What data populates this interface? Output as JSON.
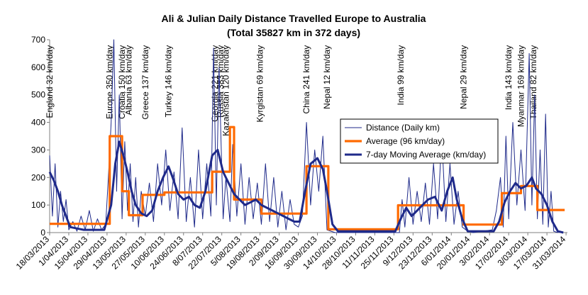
{
  "chart_data": {
    "type": "line",
    "title": "Ali & Julian Daily Distance Travelled Europe to Australia",
    "subtitle": "(Total 35827 km  in 372 days)",
    "xlabel": "",
    "ylabel": "",
    "ylim": [
      0,
      700
    ],
    "yticks": [
      0,
      100,
      200,
      300,
      400,
      500,
      600,
      700
    ],
    "x_range": [
      "2013-03-18",
      "2014-04-01"
    ],
    "x_tick_dates": [
      "2013-03-18",
      "2013-04-01",
      "2013-04-15",
      "2013-04-29",
      "2013-05-13",
      "2013-05-27",
      "2013-06-10",
      "2013-06-24",
      "2013-07-08",
      "2013-07-22",
      "2013-08-05",
      "2013-08-19",
      "2013-09-02",
      "2013-09-16",
      "2013-09-30",
      "2013-10-14",
      "2013-10-28",
      "2013-11-11",
      "2013-11-25",
      "2013-12-09",
      "2013-12-23",
      "2014-01-06",
      "2014-01-20",
      "2014-02-03",
      "2014-02-17",
      "2014-03-03",
      "2014-03-17",
      "2014-03-31"
    ],
    "x_tick_labels": [
      "18/03/2013",
      "1/04/2013",
      "15/04/2013",
      "29/04/2013",
      "13/05/2013",
      "27/05/2013",
      "10/06/2013",
      "24/06/2013",
      "8/07/2013",
      "22/07/2013",
      "5/08/2013",
      "19/08/2013",
      "2/09/2013",
      "16/09/2013",
      "30/09/2013",
      "14/10/2013",
      "28/10/2013",
      "11/11/2013",
      "25/11/2013",
      "9/12/2013",
      "23/12/2013",
      "6/01/2014",
      "20/01/2014",
      "3/02/2014",
      "17/02/2014",
      "3/03/2014",
      "17/03/2014",
      "31/03/2014"
    ],
    "grid": false,
    "legend_position": "right",
    "series": [
      {
        "name": "Distance (Daily km)",
        "color": "#1f2a8a",
        "style": "thin",
        "points": [
          [
            "2013-03-18",
            280
          ],
          [
            "2013-03-20",
            60
          ],
          [
            "2013-03-22",
            250
          ],
          [
            "2013-03-24",
            20
          ],
          [
            "2013-03-26",
            150
          ],
          [
            "2013-03-28",
            40
          ],
          [
            "2013-03-30",
            120
          ],
          [
            "2013-04-01",
            10
          ],
          [
            "2013-04-04",
            40
          ],
          [
            "2013-04-07",
            5
          ],
          [
            "2013-04-10",
            60
          ],
          [
            "2013-04-13",
            10
          ],
          [
            "2013-04-16",
            80
          ],
          [
            "2013-04-19",
            5
          ],
          [
            "2013-04-22",
            50
          ],
          [
            "2013-04-25",
            10
          ],
          [
            "2013-04-28",
            30
          ],
          [
            "2013-04-30",
            200
          ],
          [
            "2013-05-02",
            400
          ],
          [
            "2013-05-04",
            700
          ],
          [
            "2013-05-06",
            150
          ],
          [
            "2013-05-08",
            500
          ],
          [
            "2013-05-10",
            50
          ],
          [
            "2013-05-12",
            330
          ],
          [
            "2013-05-14",
            80
          ],
          [
            "2013-05-16",
            250
          ],
          [
            "2013-05-18",
            40
          ],
          [
            "2013-05-20",
            200
          ],
          [
            "2013-05-22",
            20
          ],
          [
            "2013-05-24",
            150
          ],
          [
            "2013-05-27",
            60
          ],
          [
            "2013-05-30",
            180
          ],
          [
            "2013-06-02",
            40
          ],
          [
            "2013-06-05",
            250
          ],
          [
            "2013-06-08",
            100
          ],
          [
            "2013-06-11",
            300
          ],
          [
            "2013-06-14",
            80
          ],
          [
            "2013-06-17",
            220
          ],
          [
            "2013-06-20",
            50
          ],
          [
            "2013-06-23",
            380
          ],
          [
            "2013-06-26",
            40
          ],
          [
            "2013-06-29",
            200
          ],
          [
            "2013-07-02",
            20
          ],
          [
            "2013-07-05",
            300
          ],
          [
            "2013-07-08",
            50
          ],
          [
            "2013-07-11",
            250
          ],
          [
            "2013-07-14",
            60
          ],
          [
            "2013-07-16",
            670
          ],
          [
            "2013-07-18",
            100
          ],
          [
            "2013-07-20",
            600
          ],
          [
            "2013-07-23",
            50
          ],
          [
            "2013-07-25",
            200
          ],
          [
            "2013-07-28",
            40
          ],
          [
            "2013-07-30",
            320
          ],
          [
            "2013-08-02",
            60
          ],
          [
            "2013-08-05",
            250
          ],
          [
            "2013-08-08",
            30
          ],
          [
            "2013-08-11",
            200
          ],
          [
            "2013-08-14",
            50
          ],
          [
            "2013-08-17",
            180
          ],
          [
            "2013-08-20",
            30
          ],
          [
            "2013-08-23",
            250
          ],
          [
            "2013-08-26",
            40
          ],
          [
            "2013-08-29",
            200
          ],
          [
            "2013-09-01",
            20
          ],
          [
            "2013-09-04",
            150
          ],
          [
            "2013-09-07",
            10
          ],
          [
            "2013-09-10",
            120
          ],
          [
            "2013-09-13",
            30
          ],
          [
            "2013-09-16",
            20
          ],
          [
            "2013-09-19",
            60
          ],
          [
            "2013-09-22",
            400
          ],
          [
            "2013-09-25",
            100
          ],
          [
            "2013-09-28",
            300
          ],
          [
            "2013-10-01",
            150
          ],
          [
            "2013-10-04",
            350
          ],
          [
            "2013-10-07",
            10
          ],
          [
            "2013-10-10",
            5
          ],
          [
            "2013-10-13",
            0
          ],
          [
            "2013-11-29",
            0
          ],
          [
            "2013-12-01",
            120
          ],
          [
            "2013-12-03",
            20
          ],
          [
            "2013-12-06",
            200
          ],
          [
            "2013-12-09",
            30
          ],
          [
            "2013-12-12",
            150
          ],
          [
            "2013-12-15",
            40
          ],
          [
            "2013-12-18",
            180
          ],
          [
            "2013-12-21",
            30
          ],
          [
            "2013-12-24",
            250
          ],
          [
            "2013-12-27",
            50
          ],
          [
            "2013-12-30",
            350
          ],
          [
            "2014-01-02",
            40
          ],
          [
            "2014-01-05",
            250
          ],
          [
            "2014-01-08",
            30
          ],
          [
            "2014-01-11",
            150
          ],
          [
            "2014-01-14",
            20
          ],
          [
            "2014-01-18",
            5
          ],
          [
            "2014-01-22",
            0
          ],
          [
            "2014-02-05",
            10
          ],
          [
            "2014-02-08",
            80
          ],
          [
            "2014-02-11",
            200
          ],
          [
            "2014-02-13",
            20
          ],
          [
            "2014-02-15",
            350
          ],
          [
            "2014-02-17",
            50
          ],
          [
            "2014-02-20",
            400
          ],
          [
            "2014-02-23",
            100
          ],
          [
            "2014-02-26",
            300
          ],
          [
            "2014-03-01",
            80
          ],
          [
            "2014-03-04",
            650
          ],
          [
            "2014-03-06",
            100
          ],
          [
            "2014-03-08",
            500
          ],
          [
            "2014-03-10",
            50
          ],
          [
            "2014-03-12",
            300
          ],
          [
            "2014-03-14",
            30
          ],
          [
            "2014-03-16",
            430
          ],
          [
            "2014-03-18",
            20
          ],
          [
            "2014-03-20",
            150
          ],
          [
            "2014-03-22",
            5
          ],
          [
            "2014-03-25",
            0
          ]
        ]
      },
      {
        "name": "Average (96 km/day)",
        "color": "#ff6a00",
        "style": "thick-step",
        "points": [
          [
            "2013-03-18",
            32
          ],
          [
            "2013-05-01",
            32
          ],
          [
            "2013-05-01",
            350
          ],
          [
            "2013-05-10",
            350
          ],
          [
            "2013-05-10",
            150
          ],
          [
            "2013-05-15",
            150
          ],
          [
            "2013-05-15",
            63
          ],
          [
            "2013-05-25",
            63
          ],
          [
            "2013-05-25",
            137
          ],
          [
            "2013-06-10",
            137
          ],
          [
            "2013-06-10",
            146
          ],
          [
            "2013-07-15",
            146
          ],
          [
            "2013-07-15",
            221
          ],
          [
            "2013-07-28",
            221
          ],
          [
            "2013-07-28",
            383
          ],
          [
            "2013-07-31",
            383
          ],
          [
            "2013-07-31",
            120
          ],
          [
            "2013-08-20",
            120
          ],
          [
            "2013-08-20",
            69
          ],
          [
            "2013-09-22",
            69
          ],
          [
            "2013-09-22",
            241
          ],
          [
            "2013-10-08",
            241
          ],
          [
            "2013-10-08",
            12
          ],
          [
            "2013-11-28",
            12
          ],
          [
            "2013-11-28",
            99
          ],
          [
            "2014-01-15",
            99
          ],
          [
            "2014-01-15",
            29
          ],
          [
            "2014-02-12",
            29
          ],
          [
            "2014-02-12",
            143
          ],
          [
            "2014-02-26",
            143
          ],
          [
            "2014-02-26",
            169
          ],
          [
            "2014-03-10",
            169
          ],
          [
            "2014-03-10",
            82
          ],
          [
            "2014-03-30",
            82
          ]
        ]
      },
      {
        "name": "7-day Moving Average (km/day)",
        "color": "#1f2a8a",
        "style": "thick",
        "points": [
          [
            "2013-03-18",
            220
          ],
          [
            "2013-03-21",
            190
          ],
          [
            "2013-03-24",
            150
          ],
          [
            "2013-03-27",
            100
          ],
          [
            "2013-03-30",
            60
          ],
          [
            "2013-04-02",
            20
          ],
          [
            "2013-04-07",
            15
          ],
          [
            "2013-04-12",
            10
          ],
          [
            "2013-04-17",
            10
          ],
          [
            "2013-04-22",
            10
          ],
          [
            "2013-04-27",
            10
          ],
          [
            "2013-05-02",
            100
          ],
          [
            "2013-05-05",
            250
          ],
          [
            "2013-05-08",
            330
          ],
          [
            "2013-05-11",
            280
          ],
          [
            "2013-05-14",
            220
          ],
          [
            "2013-05-17",
            150
          ],
          [
            "2013-05-20",
            100
          ],
          [
            "2013-05-24",
            70
          ],
          [
            "2013-05-28",
            60
          ],
          [
            "2013-06-01",
            80
          ],
          [
            "2013-06-05",
            150
          ],
          [
            "2013-06-09",
            200
          ],
          [
            "2013-06-13",
            240
          ],
          [
            "2013-06-16",
            200
          ],
          [
            "2013-06-20",
            140
          ],
          [
            "2013-06-24",
            120
          ],
          [
            "2013-06-28",
            130
          ],
          [
            "2013-07-02",
            100
          ],
          [
            "2013-07-06",
            90
          ],
          [
            "2013-07-10",
            150
          ],
          [
            "2013-07-15",
            280
          ],
          [
            "2013-07-19",
            300
          ],
          [
            "2013-07-23",
            220
          ],
          [
            "2013-07-27",
            180
          ],
          [
            "2013-07-31",
            140
          ],
          [
            "2013-08-04",
            120
          ],
          [
            "2013-08-08",
            100
          ],
          [
            "2013-08-12",
            110
          ],
          [
            "2013-08-16",
            120
          ],
          [
            "2013-08-20",
            100
          ],
          [
            "2013-08-24",
            90
          ],
          [
            "2013-08-28",
            80
          ],
          [
            "2013-09-01",
            70
          ],
          [
            "2013-09-05",
            60
          ],
          [
            "2013-09-09",
            50
          ],
          [
            "2013-09-13",
            40
          ],
          [
            "2013-09-17",
            40
          ],
          [
            "2013-09-21",
            150
          ],
          [
            "2013-09-25",
            250
          ],
          [
            "2013-09-30",
            270
          ],
          [
            "2013-10-04",
            230
          ],
          [
            "2013-10-07",
            150
          ],
          [
            "2013-10-11",
            30
          ],
          [
            "2013-10-15",
            5
          ],
          [
            "2013-11-26",
            5
          ],
          [
            "2013-11-30",
            50
          ],
          [
            "2013-12-04",
            90
          ],
          [
            "2013-12-08",
            60
          ],
          [
            "2013-12-12",
            80
          ],
          [
            "2013-12-16",
            100
          ],
          [
            "2013-12-20",
            120
          ],
          [
            "2013-12-25",
            130
          ],
          [
            "2013-12-30",
            80
          ],
          [
            "2014-01-03",
            150
          ],
          [
            "2014-01-07",
            200
          ],
          [
            "2014-01-10",
            120
          ],
          [
            "2014-01-14",
            50
          ],
          [
            "2014-01-18",
            5
          ],
          [
            "2014-02-06",
            5
          ],
          [
            "2014-02-10",
            40
          ],
          [
            "2014-02-14",
            110
          ],
          [
            "2014-02-18",
            150
          ],
          [
            "2014-02-22",
            180
          ],
          [
            "2014-02-26",
            160
          ],
          [
            "2014-03-02",
            170
          ],
          [
            "2014-03-06",
            200
          ],
          [
            "2014-03-09",
            160
          ],
          [
            "2014-03-13",
            140
          ],
          [
            "2014-03-17",
            100
          ],
          [
            "2014-03-21",
            40
          ],
          [
            "2014-03-25",
            5
          ],
          [
            "2014-03-29",
            0
          ]
        ]
      }
    ],
    "annotations": [
      {
        "text": "England 32 km/day",
        "date": "2013-03-18",
        "value": 680
      },
      {
        "text": "Europe 350 km/day",
        "date": "2013-05-01",
        "value": 680
      },
      {
        "text": "Croatia 150 km/day",
        "date": "2013-05-10",
        "value": 680
      },
      {
        "text": "Albania 63 km/day",
        "date": "2013-05-15",
        "value": 680
      },
      {
        "text": "Greece 137 km/day",
        "date": "2013-05-27",
        "value": 680
      },
      {
        "text": "Turkey 146 km/day",
        "date": "2013-06-13",
        "value": 680
      },
      {
        "text": "Georgia 221 km/day",
        "date": "2013-07-17",
        "value": 680
      },
      {
        "text": "Russia 383 km/day",
        "date": "2013-07-21",
        "value": 680
      },
      {
        "text": "Kazakhstan 120 km/day",
        "date": "2013-07-25",
        "value": 680
      },
      {
        "text": "Kyrgistan 69 km/day",
        "date": "2013-08-19",
        "value": 680
      },
      {
        "text": "China 241 km/day",
        "date": "2013-09-22",
        "value": 680
      },
      {
        "text": "Nepal 12 km/day",
        "date": "2013-10-07",
        "value": 680
      },
      {
        "text": "India 99 km/day",
        "date": "2013-11-30",
        "value": 680
      },
      {
        "text": "Nepal 29 km/day",
        "date": "2014-01-15",
        "value": 680
      },
      {
        "text": "India 143 km/day",
        "date": "2014-02-17",
        "value": 680
      },
      {
        "text": "Myanmar 169 km/day",
        "date": "2014-02-26",
        "value": 680
      },
      {
        "text": "Thailand 82 km/day",
        "date": "2014-03-07",
        "value": 680
      }
    ]
  }
}
